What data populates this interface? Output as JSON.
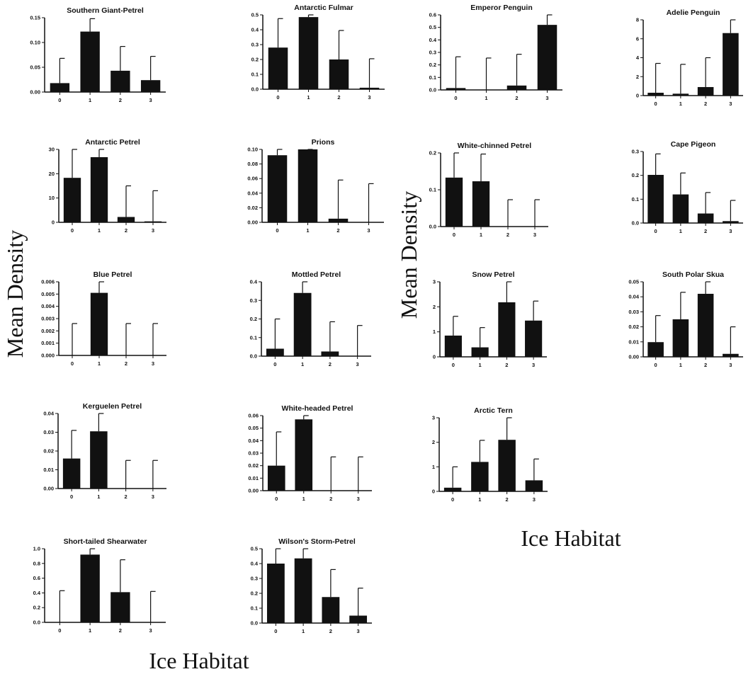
{
  "figure": {
    "y_label": "Mean Density",
    "x_label": "Ice Habitat",
    "bar_color": "#111111"
  },
  "chart_data": [
    {
      "type": "bar",
      "title": "Southern Giant-Petrel",
      "categories": [
        "0",
        "1",
        "2",
        "3"
      ],
      "values": [
        0.018,
        0.122,
        0.043,
        0.024
      ],
      "errors": [
        0.068,
        0.148,
        0.092,
        0.072
      ],
      "ylim": [
        0,
        0.15
      ],
      "yticks": [
        0,
        0.05,
        0.1,
        0.15
      ],
      "ytick_labels": [
        "0.00",
        "0.05",
        "0.10",
        "0.15"
      ]
    },
    {
      "type": "bar",
      "title": "Antarctic Fulmar",
      "categories": [
        "0",
        "1",
        "2",
        "3"
      ],
      "values": [
        0.28,
        0.485,
        0.2,
        0.01
      ],
      "errors": [
        0.475,
        0.5,
        0.395,
        0.205
      ],
      "ylim": [
        0,
        0.5
      ],
      "yticks": [
        0,
        0.1,
        0.2,
        0.3,
        0.4,
        0.5
      ],
      "ytick_labels": [
        "0.0",
        "0.1",
        "0.2",
        "0.3",
        "0.4",
        "0.5"
      ]
    },
    {
      "type": "bar",
      "title": "Emperor Penguin",
      "categories": [
        "0",
        "1",
        "2",
        "3"
      ],
      "values": [
        0.015,
        0,
        0.035,
        0.52
      ],
      "errors": [
        0.265,
        0.255,
        0.285,
        0.6
      ],
      "ylim": [
        0,
        0.6
      ],
      "yticks": [
        0,
        0.1,
        0.2,
        0.3,
        0.4,
        0.5,
        0.6
      ],
      "ytick_labels": [
        "0.0",
        "0.1",
        "0.2",
        "0.3",
        "0.4",
        "0.5",
        "0.6"
      ]
    },
    {
      "type": "bar",
      "title": "Adelie Penguin",
      "categories": [
        "0",
        "1",
        "2",
        "3"
      ],
      "values": [
        0.3,
        0.2,
        0.9,
        6.6
      ],
      "errors": [
        3.4,
        3.3,
        4.0,
        8.0
      ],
      "ylim": [
        0,
        8
      ],
      "yticks": [
        0,
        2,
        4,
        6,
        8
      ],
      "ytick_labels": [
        "0",
        "2",
        "4",
        "6",
        "8"
      ]
    },
    {
      "type": "bar",
      "title": "Antarctic Petrel",
      "categories": [
        "0",
        "1",
        "2",
        "3"
      ],
      "values": [
        18.3,
        26.8,
        2.2,
        0.4
      ],
      "errors": [
        30,
        30,
        15,
        13
      ],
      "ylim": [
        0,
        30
      ],
      "yticks": [
        0,
        10,
        20,
        30
      ],
      "ytick_labels": [
        "0",
        "10",
        "20",
        "30"
      ]
    },
    {
      "type": "bar",
      "title": "Prions",
      "categories": [
        "0",
        "1",
        "2",
        "3"
      ],
      "values": [
        0.092,
        0.1,
        0.005,
        0
      ],
      "errors": [
        0.1,
        0.1,
        0.058,
        0.053
      ],
      "ylim": [
        0,
        0.1
      ],
      "yticks": [
        0,
        0.02,
        0.04,
        0.06,
        0.08,
        0.1
      ],
      "ytick_labels": [
        "0.00",
        "0.02",
        "0.04",
        "0.06",
        "0.08",
        "0.10"
      ]
    },
    {
      "type": "bar",
      "title": "White-chinned Petrel",
      "categories": [
        "0",
        "1",
        "2",
        "3"
      ],
      "values": [
        0.133,
        0.123,
        0,
        0
      ],
      "errors": [
        0.2,
        0.197,
        0.073,
        0.073
      ],
      "ylim": [
        0,
        0.2
      ],
      "yticks": [
        0,
        0.1,
        0.2
      ],
      "ytick_labels": [
        "0.0",
        "0.1",
        "0.2"
      ]
    },
    {
      "type": "bar",
      "title": "Cape Pigeon",
      "categories": [
        "0",
        "1",
        "2",
        "3"
      ],
      "values": [
        0.202,
        0.12,
        0.04,
        0.008
      ],
      "errors": [
        0.29,
        0.21,
        0.128,
        0.095
      ],
      "ylim": [
        0,
        0.3
      ],
      "yticks": [
        0,
        0.1,
        0.2,
        0.3
      ],
      "ytick_labels": [
        "0.0",
        "0.1",
        "0.2",
        "0.3"
      ]
    },
    {
      "type": "bar",
      "title": "Blue Petrel",
      "categories": [
        "0",
        "1",
        "2",
        "3"
      ],
      "values": [
        0,
        0.0051,
        0,
        0
      ],
      "errors": [
        0.0026,
        0.006,
        0.0026,
        0.0026
      ],
      "ylim": [
        0,
        0.006
      ],
      "yticks": [
        0,
        0.001,
        0.002,
        0.003,
        0.004,
        0.005,
        0.006
      ],
      "ytick_labels": [
        "0.000",
        "0.001",
        "0.002",
        "0.003",
        "0.004",
        "0.005",
        "0.006"
      ]
    },
    {
      "type": "bar",
      "title": "Mottled Petrel",
      "categories": [
        "0",
        "1",
        "2",
        "3"
      ],
      "values": [
        0.04,
        0.34,
        0.025,
        0
      ],
      "errors": [
        0.2,
        0.4,
        0.185,
        0.165
      ],
      "ylim": [
        0,
        0.4
      ],
      "yticks": [
        0,
        0.1,
        0.2,
        0.3,
        0.4
      ],
      "ytick_labels": [
        "0.0",
        "0.1",
        "0.2",
        "0.3",
        "0.4"
      ]
    },
    {
      "type": "bar",
      "title": "Snow Petrel",
      "categories": [
        "0",
        "1",
        "2",
        "3"
      ],
      "values": [
        0.85,
        0.38,
        2.18,
        1.45
      ],
      "errors": [
        1.62,
        1.17,
        3.0,
        2.23
      ],
      "ylim": [
        0,
        3
      ],
      "yticks": [
        0,
        1,
        2,
        3
      ],
      "ytick_labels": [
        "0",
        "1",
        "2",
        "3"
      ]
    },
    {
      "type": "bar",
      "title": "South Polar Skua",
      "categories": [
        "0",
        "1",
        "2",
        "3"
      ],
      "values": [
        0.0098,
        0.025,
        0.042,
        0.002
      ],
      "errors": [
        0.0275,
        0.043,
        0.05,
        0.02
      ],
      "ylim": [
        0,
        0.05
      ],
      "yticks": [
        0,
        0.01,
        0.02,
        0.03,
        0.04,
        0.05
      ],
      "ytick_labels": [
        "0.00",
        "0.01",
        "0.02",
        "0.03",
        "0.04",
        "0.05"
      ]
    },
    {
      "type": "bar",
      "title": "Kerguelen Petrel",
      "categories": [
        "0",
        "1",
        "2",
        "3"
      ],
      "values": [
        0.016,
        0.0305,
        0,
        0
      ],
      "errors": [
        0.031,
        0.04,
        0.015,
        0.015
      ],
      "ylim": [
        0,
        0.04
      ],
      "yticks": [
        0,
        0.01,
        0.02,
        0.03,
        0.04
      ],
      "ytick_labels": [
        "0.00",
        "0.01",
        "0.02",
        "0.03",
        "0.04"
      ]
    },
    {
      "type": "bar",
      "title": "White-headed Petrel",
      "categories": [
        "0",
        "1",
        "2",
        "3"
      ],
      "values": [
        0.02,
        0.057,
        0,
        0
      ],
      "errors": [
        0.047,
        0.06,
        0.027,
        0.027
      ],
      "ylim": [
        0,
        0.06
      ],
      "yticks": [
        0,
        0.01,
        0.02,
        0.03,
        0.04,
        0.05,
        0.06
      ],
      "ytick_labels": [
        "0.00",
        "0.01",
        "0.02",
        "0.03",
        "0.04",
        "0.05",
        "0.06"
      ]
    },
    {
      "type": "bar",
      "title": "Arctic Tern",
      "categories": [
        "0",
        "1",
        "2",
        "3"
      ],
      "values": [
        0.15,
        1.2,
        2.1,
        0.45
      ],
      "errors": [
        1.0,
        2.08,
        3.0,
        1.32
      ],
      "ylim": [
        0,
        3
      ],
      "yticks": [
        0,
        1,
        2,
        3
      ],
      "ytick_labels": [
        "0",
        "1",
        "2",
        "3"
      ]
    },
    {
      "type": "bar",
      "title": "Short-tailed Shearwater",
      "categories": [
        "0",
        "1",
        "2",
        "3"
      ],
      "values": [
        0,
        0.92,
        0.41,
        0
      ],
      "errors": [
        0.43,
        1.0,
        0.85,
        0.42
      ],
      "ylim": [
        0,
        1
      ],
      "yticks": [
        0,
        0.2,
        0.4,
        0.6,
        0.8,
        1
      ],
      "ytick_labels": [
        "0.0",
        "0.2",
        "0.4",
        "0.6",
        "0.8",
        "1.0"
      ]
    },
    {
      "type": "bar",
      "title": "Wilson's Storm-Petrel",
      "categories": [
        "0",
        "1",
        "2",
        "3"
      ],
      "values": [
        0.4,
        0.435,
        0.175,
        0.05
      ],
      "errors": [
        0.5,
        0.5,
        0.36,
        0.235
      ],
      "ylim": [
        0,
        0.5
      ],
      "yticks": [
        0,
        0.1,
        0.2,
        0.3,
        0.4,
        0.5
      ],
      "ytick_labels": [
        "0.0",
        "0.1",
        "0.2",
        "0.3",
        "0.4",
        "0.5"
      ]
    }
  ]
}
